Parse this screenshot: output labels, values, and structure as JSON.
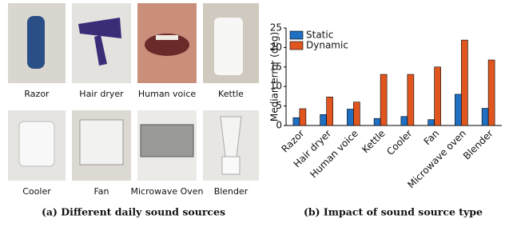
{
  "figure_a": {
    "labels": [
      "Razor",
      "Hair dryer",
      "Human voice",
      "Kettle",
      "Cooler",
      "Fan",
      "Microwave Oven",
      "Blender"
    ],
    "caption": "(a) Different daily sound sources"
  },
  "chart_data": {
    "type": "bar",
    "caption": "(b) Impact of sound source type",
    "y_label": "Median error (deg)",
    "categories": [
      "Razor",
      "Hair dryer",
      "Human voice",
      "Kettle",
      "Cooler",
      "Fan",
      "Microwave oven",
      "Blender"
    ],
    "series": [
      {
        "name": "Static",
        "color": "#1f6fc2",
        "values": [
          2.0,
          2.8,
          4.2,
          1.8,
          2.3,
          1.5,
          8.0,
          4.4
        ]
      },
      {
        "name": "Dynamic",
        "color": "#e0561e",
        "values": [
          4.3,
          7.3,
          6.0,
          13.1,
          13.1,
          15.0,
          21.9,
          16.8
        ]
      }
    ],
    "ylim": [
      0,
      25
    ],
    "yticks": [
      0,
      5,
      10,
      15,
      20,
      25
    ],
    "grid": false,
    "legend": "upper-left"
  }
}
